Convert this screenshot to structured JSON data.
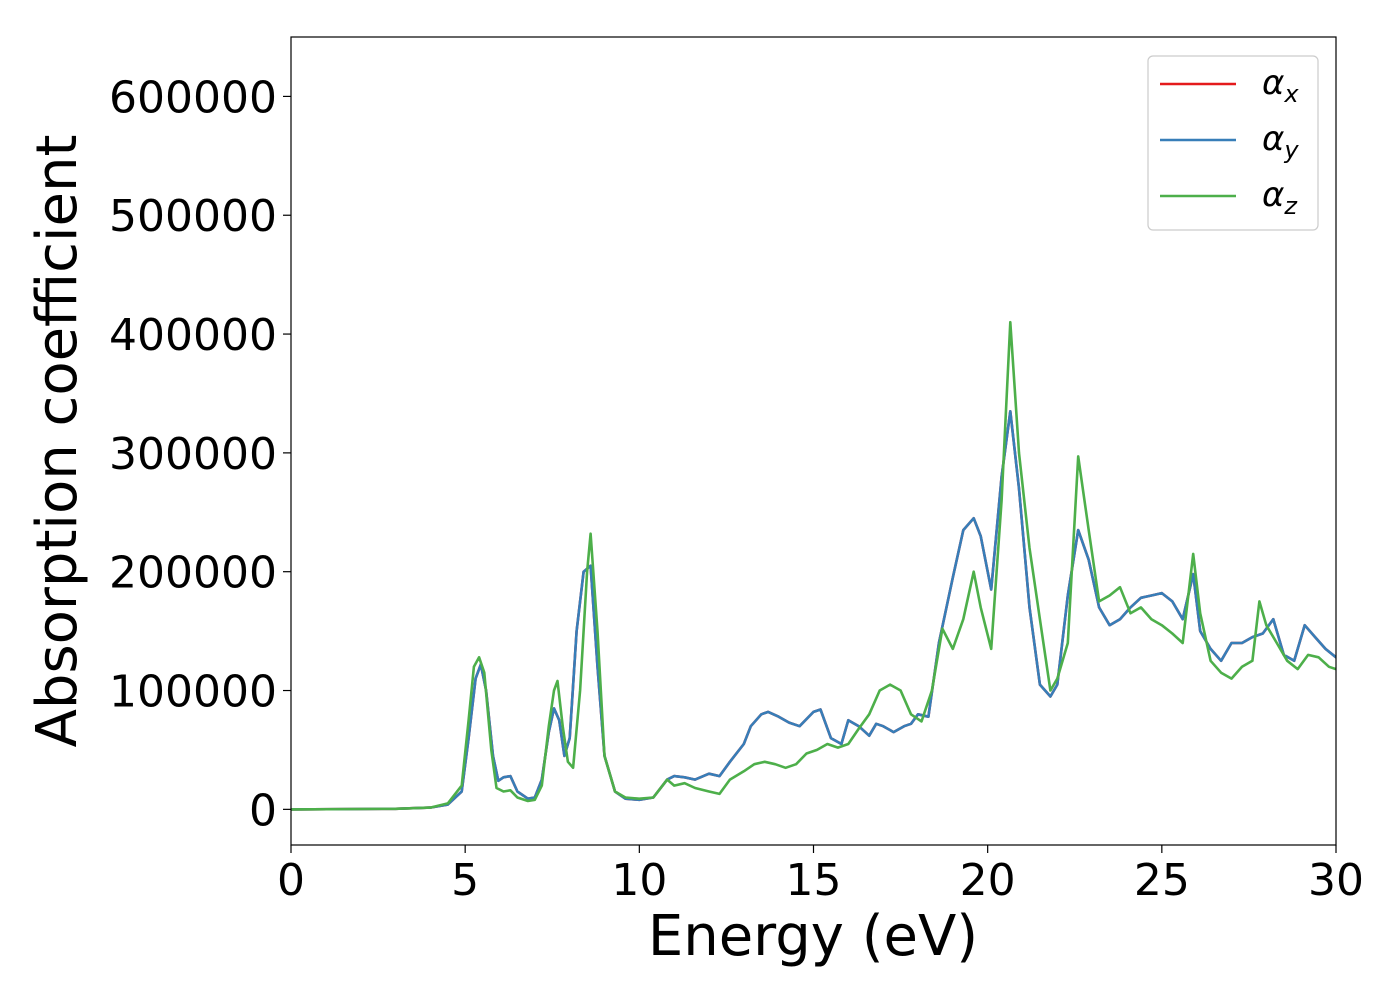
{
  "chart_data": {
    "type": "line",
    "title": "",
    "xlabel": "Energy (eV)",
    "ylabel": "Absorption coefficient",
    "xlim": [
      0,
      30
    ],
    "ylim": [
      -30000,
      650000
    ],
    "xticks": [
      0,
      5,
      10,
      15,
      20,
      25,
      30
    ],
    "xtick_labels": [
      "0",
      "5",
      "10",
      "15",
      "20",
      "25",
      "30"
    ],
    "yticks": [
      0,
      100000,
      200000,
      300000,
      400000,
      500000,
      600000
    ],
    "ytick_labels": [
      "0",
      "100000",
      "200000",
      "300000",
      "400000",
      "500000",
      "600000"
    ],
    "grid": false,
    "legend_position": "top-right",
    "series": [
      {
        "name": "α",
        "subscript": "x",
        "color": "#e41a1c",
        "x": [
          0,
          3,
          4,
          4.5,
          4.9,
          5.1,
          5.3,
          5.45,
          5.6,
          5.8,
          5.95,
          6.1,
          6.3,
          6.5,
          6.8,
          7.0,
          7.2,
          7.4,
          7.55,
          7.7,
          7.85,
          8.0,
          8.2,
          8.4,
          8.6,
          8.8,
          9.0,
          9.3,
          9.6,
          10.0,
          10.4,
          10.8,
          11.0,
          11.3,
          11.6,
          12.0,
          12.3,
          12.6,
          13.0,
          13.2,
          13.5,
          13.7,
          14.0,
          14.3,
          14.6,
          15.0,
          15.2,
          15.5,
          15.8,
          16.0,
          16.3,
          16.6,
          16.8,
          17.0,
          17.3,
          17.6,
          17.8,
          18.0,
          18.3,
          18.6,
          19.0,
          19.3,
          19.6,
          19.8,
          20.1,
          20.4,
          20.65,
          20.9,
          21.2,
          21.5,
          21.8,
          22.0,
          22.3,
          22.6,
          22.9,
          23.2,
          23.5,
          23.8,
          24.1,
          24.4,
          24.7,
          25.0,
          25.3,
          25.6,
          25.9,
          26.1,
          26.4,
          26.7,
          27.0,
          27.3,
          27.6,
          27.9,
          28.2,
          28.5,
          28.8,
          29.1,
          29.4,
          29.7,
          30.0
        ],
        "values": [
          0,
          500,
          1500,
          4000,
          15000,
          60000,
          110000,
          122000,
          100000,
          45000,
          24000,
          27000,
          28000,
          15000,
          9000,
          10000,
          25000,
          65000,
          85000,
          75000,
          45000,
          60000,
          150000,
          200000,
          205000,
          120000,
          45000,
          15000,
          9000,
          8000,
          10000,
          25000,
          28000,
          27000,
          25000,
          30000,
          28000,
          40000,
          55000,
          70000,
          80000,
          82000,
          78000,
          73000,
          70000,
          82000,
          84000,
          60000,
          55000,
          75000,
          70000,
          62000,
          72000,
          70000,
          65000,
          70000,
          72000,
          80000,
          78000,
          140000,
          195000,
          235000,
          245000,
          230000,
          185000,
          280000,
          335000,
          270000,
          170000,
          105000,
          95000,
          105000,
          180000,
          235000,
          210000,
          170000,
          155000,
          160000,
          170000,
          178000,
          180000,
          182000,
          175000,
          160000,
          198000,
          150000,
          135000,
          125000,
          140000,
          140000,
          145000,
          148000,
          160000,
          130000,
          125000,
          155000,
          145000,
          135000,
          128000
        ]
      },
      {
        "name": "α",
        "subscript": "y",
        "color": "#377eb8",
        "x": [
          0,
          3,
          4,
          4.5,
          4.9,
          5.1,
          5.3,
          5.45,
          5.6,
          5.8,
          5.95,
          6.1,
          6.3,
          6.5,
          6.8,
          7.0,
          7.2,
          7.4,
          7.55,
          7.7,
          7.85,
          8.0,
          8.2,
          8.4,
          8.6,
          8.8,
          9.0,
          9.3,
          9.6,
          10.0,
          10.4,
          10.8,
          11.0,
          11.3,
          11.6,
          12.0,
          12.3,
          12.6,
          13.0,
          13.2,
          13.5,
          13.7,
          14.0,
          14.3,
          14.6,
          15.0,
          15.2,
          15.5,
          15.8,
          16.0,
          16.3,
          16.6,
          16.8,
          17.0,
          17.3,
          17.6,
          17.8,
          18.0,
          18.3,
          18.6,
          19.0,
          19.3,
          19.6,
          19.8,
          20.1,
          20.4,
          20.65,
          20.9,
          21.2,
          21.5,
          21.8,
          22.0,
          22.3,
          22.6,
          22.9,
          23.2,
          23.5,
          23.8,
          24.1,
          24.4,
          24.7,
          25.0,
          25.3,
          25.6,
          25.9,
          26.1,
          26.4,
          26.7,
          27.0,
          27.3,
          27.6,
          27.9,
          28.2,
          28.5,
          28.8,
          29.1,
          29.4,
          29.7,
          30.0
        ],
        "values": [
          0,
          500,
          1500,
          4000,
          15000,
          60000,
          110000,
          122000,
          100000,
          45000,
          24000,
          27000,
          28000,
          15000,
          9000,
          10000,
          25000,
          65000,
          85000,
          75000,
          45000,
          60000,
          150000,
          200000,
          205000,
          120000,
          45000,
          15000,
          9000,
          8000,
          10000,
          25000,
          28000,
          27000,
          25000,
          30000,
          28000,
          40000,
          55000,
          70000,
          80000,
          82000,
          78000,
          73000,
          70000,
          82000,
          84000,
          60000,
          55000,
          75000,
          70000,
          62000,
          72000,
          70000,
          65000,
          70000,
          72000,
          80000,
          78000,
          140000,
          195000,
          235000,
          245000,
          230000,
          185000,
          280000,
          335000,
          270000,
          170000,
          105000,
          95000,
          105000,
          180000,
          235000,
          210000,
          170000,
          155000,
          160000,
          170000,
          178000,
          180000,
          182000,
          175000,
          160000,
          198000,
          150000,
          135000,
          125000,
          140000,
          140000,
          145000,
          148000,
          160000,
          130000,
          125000,
          155000,
          145000,
          135000,
          128000
        ]
      },
      {
        "name": "α",
        "subscript": "z",
        "color": "#4daf4a",
        "x": [
          0,
          3,
          4,
          4.5,
          4.9,
          5.1,
          5.25,
          5.4,
          5.55,
          5.75,
          5.9,
          6.1,
          6.3,
          6.5,
          6.8,
          7.0,
          7.2,
          7.4,
          7.55,
          7.65,
          7.8,
          7.95,
          8.1,
          8.3,
          8.5,
          8.6,
          8.8,
          9.0,
          9.3,
          9.6,
          10.0,
          10.4,
          10.8,
          11.0,
          11.3,
          11.6,
          12.0,
          12.3,
          12.6,
          13.0,
          13.3,
          13.6,
          13.9,
          14.2,
          14.5,
          14.8,
          15.1,
          15.4,
          15.7,
          16.0,
          16.3,
          16.6,
          16.9,
          17.2,
          17.5,
          17.8,
          18.1,
          18.4,
          18.7,
          19.0,
          19.3,
          19.6,
          19.8,
          20.1,
          20.4,
          20.65,
          20.9,
          21.2,
          21.5,
          21.8,
          22.0,
          22.3,
          22.6,
          22.9,
          23.2,
          23.5,
          23.8,
          24.1,
          24.4,
          24.7,
          25.0,
          25.3,
          25.6,
          25.9,
          26.1,
          26.4,
          26.7,
          27.0,
          27.3,
          27.6,
          27.8,
          28.0,
          28.3,
          28.6,
          28.9,
          29.2,
          29.5,
          29.8,
          30.0
        ],
        "values": [
          0,
          500,
          1500,
          5000,
          20000,
          75000,
          120000,
          128000,
          115000,
          50000,
          18000,
          15000,
          16000,
          10000,
          7000,
          8000,
          20000,
          70000,
          100000,
          108000,
          70000,
          40000,
          35000,
          100000,
          200000,
          232000,
          150000,
          45000,
          15000,
          10000,
          9000,
          10000,
          25000,
          20000,
          22000,
          18000,
          15000,
          13000,
          25000,
          32000,
          38000,
          40000,
          38000,
          35000,
          38000,
          47000,
          50000,
          55000,
          52000,
          55000,
          68000,
          80000,
          100000,
          105000,
          100000,
          80000,
          74000,
          100000,
          152000,
          135000,
          160000,
          200000,
          170000,
          135000,
          260000,
          410000,
          300000,
          220000,
          160000,
          100000,
          110000,
          140000,
          297000,
          235000,
          175000,
          180000,
          187000,
          165000,
          170000,
          160000,
          155000,
          148000,
          140000,
          215000,
          165000,
          125000,
          115000,
          110000,
          120000,
          125000,
          175000,
          155000,
          140000,
          125000,
          118000,
          130000,
          128000,
          120000,
          118000
        ]
      }
    ]
  }
}
